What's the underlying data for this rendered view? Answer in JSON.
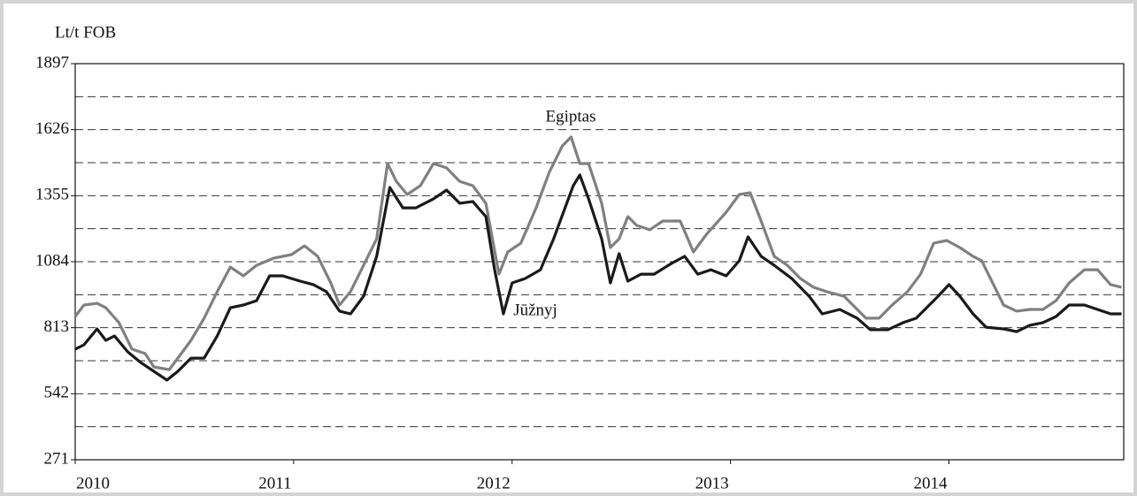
{
  "chart_data": {
    "type": "line",
    "y_axis_label": "Lt/t FOB",
    "annotations": [
      "Egiptas",
      "Jūžnyj"
    ],
    "xlim": [
      2010,
      2014.8
    ],
    "xticks": [
      2010,
      2011,
      2012,
      2013,
      2014
    ],
    "ylim": [
      271,
      1897
    ],
    "yticks": [
      271,
      542,
      813,
      1084,
      1355,
      1626,
      1897
    ],
    "minor_yticks": [
      406.5,
      677.5,
      948.5,
      1219.5,
      1490.5,
      1761.5
    ],
    "grid": true,
    "series": [
      {
        "name": "Egiptas",
        "color": "#808080",
        "x": [
          2010.0,
          2010.04,
          2010.1,
          2010.14,
          2010.2,
          2010.26,
          2010.32,
          2010.36,
          2010.43,
          2010.47,
          2010.53,
          2010.59,
          2010.65,
          2010.71,
          2010.77,
          2010.83,
          2010.91,
          2010.99,
          2011.05,
          2011.11,
          2011.17,
          2011.21,
          2011.26,
          2011.32,
          2011.38,
          2011.43,
          2011.47,
          2011.52,
          2011.58,
          2011.64,
          2011.7,
          2011.76,
          2011.82,
          2011.88,
          2011.94,
          2011.98,
          2012.04,
          2012.11,
          2012.17,
          2012.23,
          2012.27,
          2012.31,
          2012.35,
          2012.41,
          2012.45,
          2012.49,
          2012.53,
          2012.57,
          2012.63,
          2012.69,
          2012.77,
          2012.83,
          2012.89,
          2012.98,
          2013.04,
          2013.09,
          2013.14,
          2013.2,
          2013.26,
          2013.32,
          2013.38,
          2013.44,
          2013.52,
          2013.58,
          2013.62,
          2013.68,
          2013.74,
          2013.81,
          2013.87,
          2013.93,
          2013.99,
          2014.05,
          2014.11,
          2014.15,
          2014.19,
          2014.25,
          2014.31,
          2014.37,
          2014.43,
          2014.49,
          2014.55,
          2014.62,
          2014.68,
          2014.74,
          2014.79
        ],
        "values": [
          859,
          906,
          913,
          895,
          834,
          725,
          707,
          652,
          641,
          688,
          761,
          852,
          961,
          1062,
          1026,
          1069,
          1099,
          1113,
          1149,
          1106,
          997,
          906,
          961,
          1069,
          1178,
          1487,
          1414,
          1360,
          1396,
          1487,
          1469,
          1414,
          1396,
          1324,
          1033,
          1124,
          1160,
          1305,
          1451,
          1559,
          1596,
          1487,
          1487,
          1324,
          1142,
          1178,
          1269,
          1233,
          1215,
          1251,
          1251,
          1124,
          1197,
          1287,
          1360,
          1367,
          1251,
          1106,
          1069,
          1015,
          979,
          961,
          942,
          888,
          852,
          852,
          906,
          961,
          1033,
          1160,
          1171,
          1142,
          1106,
          1088,
          1015,
          906,
          881,
          888,
          888,
          924,
          997,
          1051,
          1051,
          990,
          979
        ]
      },
      {
        "name": "Jūžnyj",
        "color": "#1a1a1a",
        "x": [
          2010.0,
          2010.04,
          2010.1,
          2010.14,
          2010.18,
          2010.24,
          2010.3,
          2010.36,
          2010.42,
          2010.47,
          2010.53,
          2010.59,
          2010.65,
          2010.71,
          2010.77,
          2010.83,
          2010.89,
          2010.95,
          2011.03,
          2011.09,
          2011.15,
          2011.21,
          2011.26,
          2011.32,
          2011.38,
          2011.44,
          2011.5,
          2011.56,
          2011.64,
          2011.7,
          2011.76,
          2011.82,
          2011.88,
          2011.92,
          2011.96,
          2012.0,
          2012.06,
          2012.13,
          2012.19,
          2012.25,
          2012.28,
          2012.31,
          2012.35,
          2012.41,
          2012.45,
          2012.49,
          2012.53,
          2012.59,
          2012.65,
          2012.73,
          2012.79,
          2012.85,
          2012.91,
          2012.98,
          2013.04,
          2013.08,
          2013.14,
          2013.2,
          2013.28,
          2013.36,
          2013.42,
          2013.5,
          2013.58,
          2013.64,
          2013.72,
          2013.79,
          2013.85,
          2013.91,
          2013.95,
          2014.0,
          2014.05,
          2014.11,
          2014.17,
          2014.25,
          2014.31,
          2014.37,
          2014.43,
          2014.49,
          2014.55,
          2014.62,
          2014.68,
          2014.74,
          2014.79
        ],
        "values": [
          725,
          743,
          808,
          761,
          779,
          714,
          670,
          634,
          598,
          634,
          688,
          688,
          779,
          895,
          906,
          924,
          1026,
          1026,
          1004,
          990,
          961,
          881,
          870,
          942,
          1106,
          1389,
          1305,
          1305,
          1342,
          1378,
          1324,
          1331,
          1269,
          1051,
          870,
          997,
          1015,
          1051,
          1178,
          1324,
          1396,
          1440,
          1342,
          1178,
          997,
          1117,
          1004,
          1033,
          1033,
          1077,
          1106,
          1033,
          1051,
          1026,
          1088,
          1186,
          1106,
          1069,
          1015,
          942,
          870,
          888,
          852,
          805,
          805,
          834,
          852,
          906,
          942,
          990,
          942,
          870,
          815,
          808,
          797,
          823,
          834,
          859,
          906,
          906,
          888,
          870,
          870
        ]
      }
    ]
  }
}
